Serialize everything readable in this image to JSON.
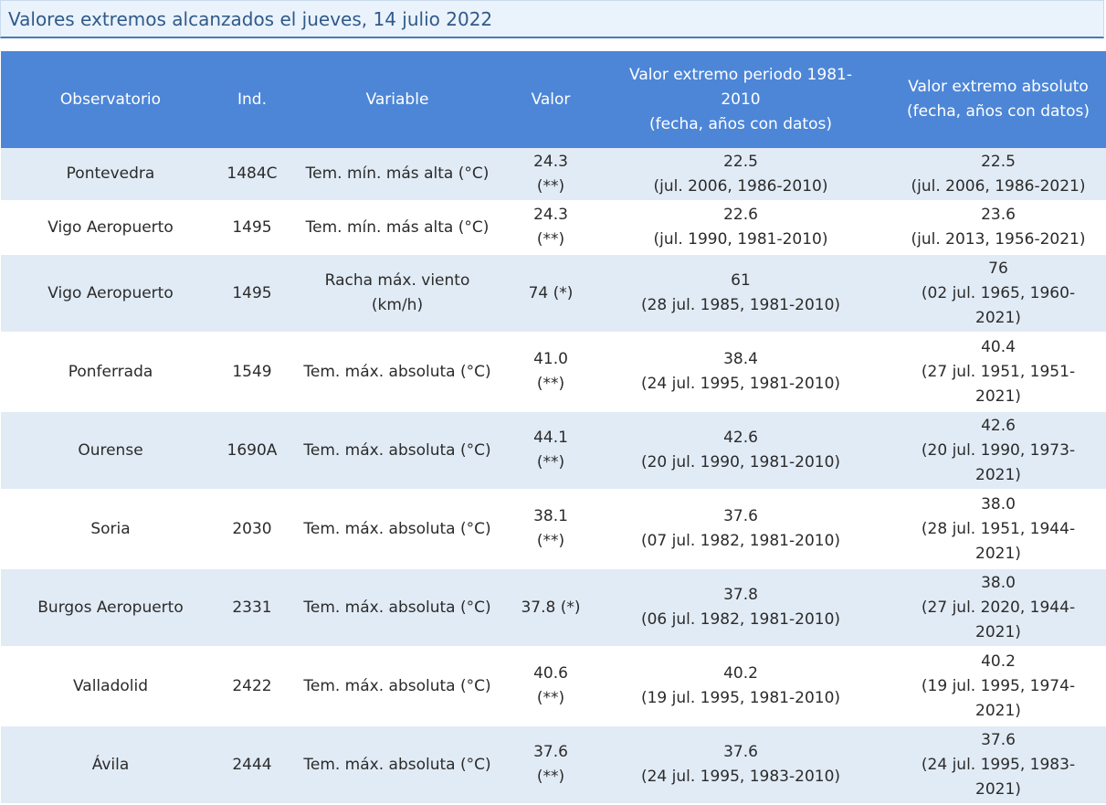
{
  "title": "Valores extremos alcanzados el jueves, 14 julio 2022",
  "headers": {
    "observatorio": "Observatorio",
    "ind": "Ind.",
    "variable": "Variable",
    "valor": "Valor",
    "periodo": "Valor extremo periodo 1981-\n2010\n(fecha, años con datos)",
    "absoluto": "Valor extremo absoluto\n(fecha, años con datos)"
  },
  "rows": [
    {
      "observatorio": "Pontevedra",
      "ind": "1484C",
      "variable": "Tem. mín. más alta (°C)",
      "valor": "24.3\n(**)",
      "periodo": "22.5\n(jul. 2006, 1986-2010)",
      "absoluto": "22.5\n(jul. 2006, 1986-2021)"
    },
    {
      "observatorio": "Vigo Aeropuerto",
      "ind": "1495",
      "variable": "Tem. mín. más alta (°C)",
      "valor": "24.3\n(**)",
      "periodo": "22.6\n(jul. 1990, 1981-2010)",
      "absoluto": "23.6\n(jul. 2013, 1956-2021)"
    },
    {
      "observatorio": "Vigo Aeropuerto",
      "ind": "1495",
      "variable": "Racha máx. viento\n(km/h)",
      "valor": "74 (*)",
      "periodo": "61\n(28 jul. 1985, 1981-2010)",
      "absoluto": "76\n(02 jul. 1965, 1960-\n2021)"
    },
    {
      "observatorio": "Ponferrada",
      "ind": "1549",
      "variable": "Tem. máx. absoluta (°C)",
      "valor": "41.0\n(**)",
      "periodo": "38.4\n(24 jul. 1995, 1981-2010)",
      "absoluto": "40.4\n(27 jul. 1951, 1951-\n2021)"
    },
    {
      "observatorio": "Ourense",
      "ind": "1690A",
      "variable": "Tem. máx. absoluta (°C)",
      "valor": "44.1\n(**)",
      "periodo": "42.6\n(20 jul. 1990, 1981-2010)",
      "absoluto": "42.6\n(20 jul. 1990, 1973-\n2021)"
    },
    {
      "observatorio": "Soria",
      "ind": "2030",
      "variable": "Tem. máx. absoluta (°C)",
      "valor": "38.1\n(**)",
      "periodo": "37.6\n(07 jul. 1982, 1981-2010)",
      "absoluto": "38.0\n(28 jul. 1951, 1944-\n2021)"
    },
    {
      "observatorio": "Burgos Aeropuerto",
      "ind": "2331",
      "variable": "Tem. máx. absoluta (°C)",
      "valor": "37.8 (*)",
      "periodo": "37.8\n(06 jul. 1982, 1981-2010)",
      "absoluto": "38.0\n(27 jul. 2020, 1944-\n2021)"
    },
    {
      "observatorio": "Valladolid",
      "ind": "2422",
      "variable": "Tem. máx. absoluta (°C)",
      "valor": "40.6\n(**)",
      "periodo": "40.2\n(19 jul. 1995, 1981-2010)",
      "absoluto": "40.2\n(19 jul. 1995, 1974-\n2021)"
    },
    {
      "observatorio": "Ávila",
      "ind": "2444",
      "variable": "Tem. máx. absoluta (°C)",
      "valor": "37.6\n(**)",
      "periodo": "37.6\n(24 jul. 1995, 1983-2010)",
      "absoluto": "37.6\n(24 jul. 1995, 1983-\n2021)"
    }
  ]
}
